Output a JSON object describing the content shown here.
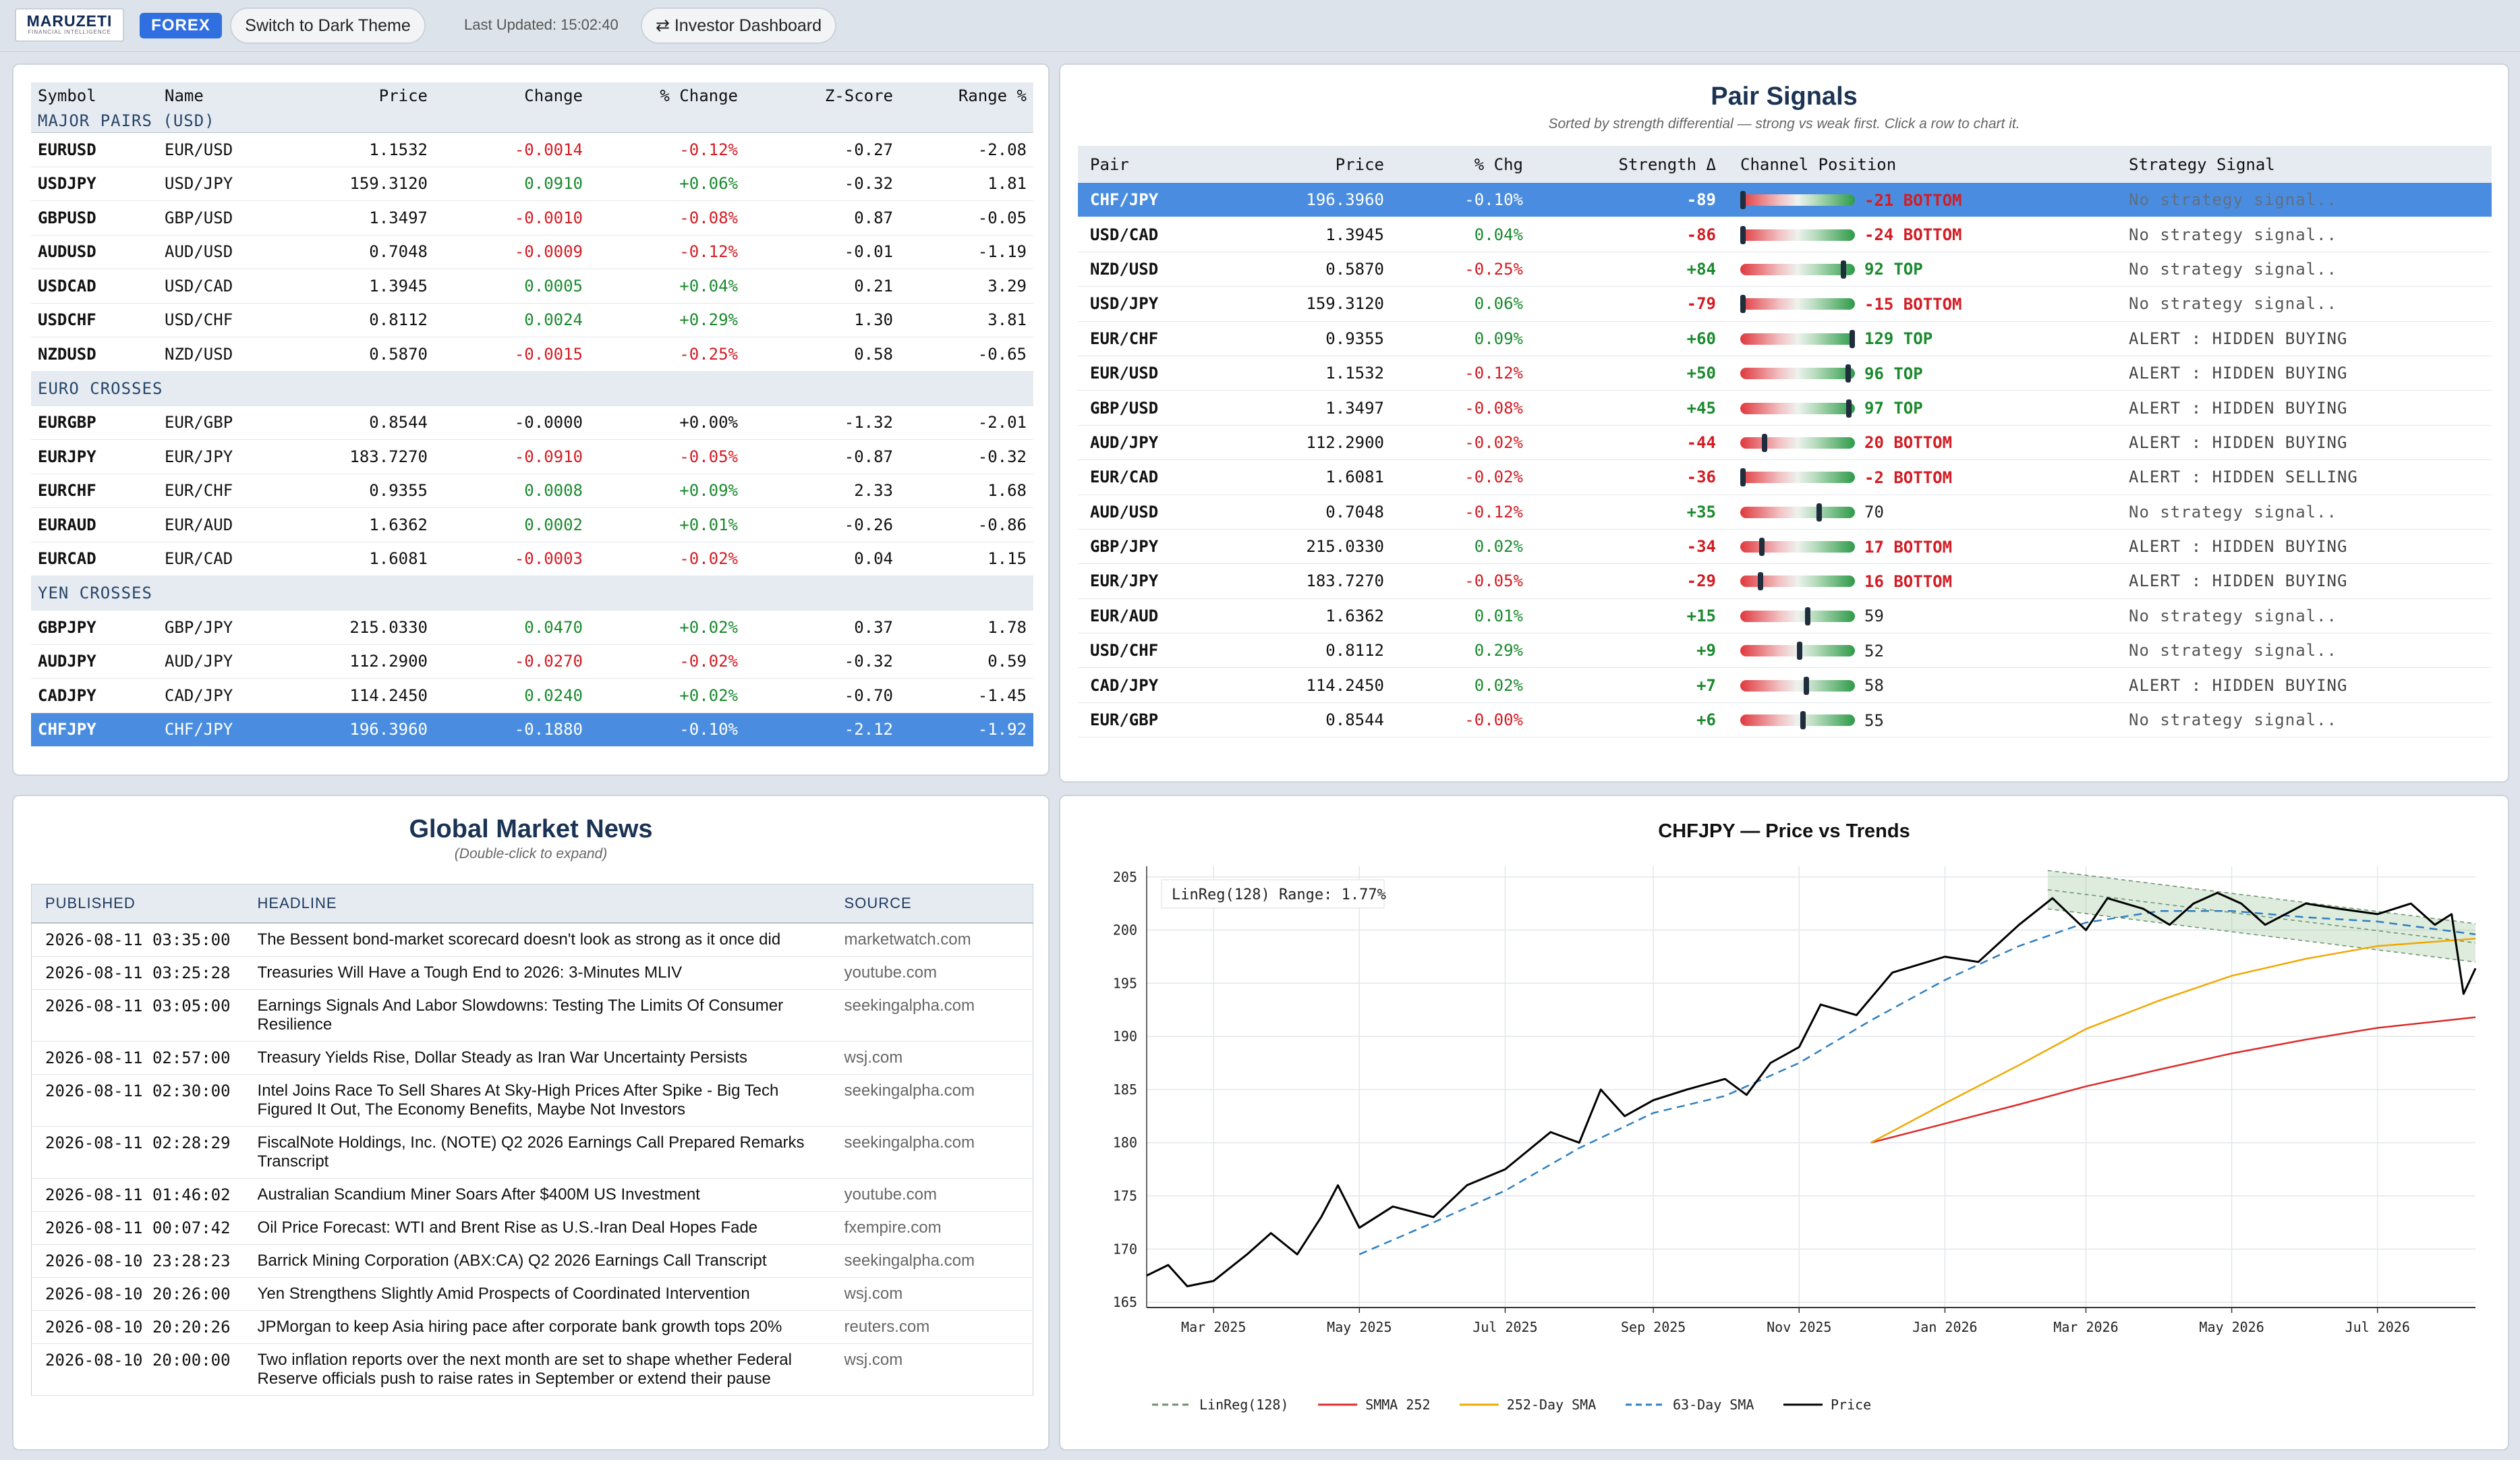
{
  "topbar": {
    "logo_text": "MARUZETI",
    "logo_sub": "FINANCIAL INTELLIGENCE",
    "badge": "FOREX",
    "theme_button": "Switch to Dark Theme",
    "last_updated": "Last Updated: 15:02:40",
    "investor_button": "Investor Dashboard",
    "investor_icon": "⇄"
  },
  "quotes": {
    "headers": [
      "Symbol",
      "Name",
      "Price",
      "Change",
      "% Change",
      "Z-Score",
      "Range %"
    ],
    "groups": [
      {
        "label": "MAJOR PAIRS (USD)",
        "rows": [
          [
            "EURUSD",
            "EUR/USD",
            "1.1532",
            "-0.0014",
            "-0.12%",
            "-0.27",
            "-2.08"
          ],
          [
            "USDJPY",
            "USD/JPY",
            "159.3120",
            "0.0910",
            "+0.06%",
            "-0.32",
            "1.81"
          ],
          [
            "GBPUSD",
            "GBP/USD",
            "1.3497",
            "-0.0010",
            "-0.08%",
            "0.87",
            "-0.05"
          ],
          [
            "AUDUSD",
            "AUD/USD",
            "0.7048",
            "-0.0009",
            "-0.12%",
            "-0.01",
            "-1.19"
          ],
          [
            "USDCAD",
            "USD/CAD",
            "1.3945",
            "0.0005",
            "+0.04%",
            "0.21",
            "3.29"
          ],
          [
            "USDCHF",
            "USD/CHF",
            "0.8112",
            "0.0024",
            "+0.29%",
            "1.30",
            "3.81"
          ],
          [
            "NZDUSD",
            "NZD/USD",
            "0.5870",
            "-0.0015",
            "-0.25%",
            "0.58",
            "-0.65"
          ]
        ]
      },
      {
        "label": "EURO CROSSES",
        "rows": [
          [
            "EURGBP",
            "EUR/GBP",
            "0.8544",
            "-0.0000",
            "+0.00%",
            "-1.32",
            "-2.01"
          ],
          [
            "EURJPY",
            "EUR/JPY",
            "183.7270",
            "-0.0910",
            "-0.05%",
            "-0.87",
            "-0.32"
          ],
          [
            "EURCHF",
            "EUR/CHF",
            "0.9355",
            "0.0008",
            "+0.09%",
            "2.33",
            "1.68"
          ],
          [
            "EURAUD",
            "EUR/AUD",
            "1.6362",
            "0.0002",
            "+0.01%",
            "-0.26",
            "-0.86"
          ],
          [
            "EURCAD",
            "EUR/CAD",
            "1.6081",
            "-0.0003",
            "-0.02%",
            "0.04",
            "1.15"
          ]
        ]
      },
      {
        "label": "YEN CROSSES",
        "rows": [
          [
            "GBPJPY",
            "GBP/JPY",
            "215.0330",
            "0.0470",
            "+0.02%",
            "0.37",
            "1.78"
          ],
          [
            "AUDJPY",
            "AUD/JPY",
            "112.2900",
            "-0.0270",
            "-0.02%",
            "-0.32",
            "0.59"
          ],
          [
            "CADJPY",
            "CAD/JPY",
            "114.2450",
            "0.0240",
            "+0.02%",
            "-0.70",
            "-1.45"
          ],
          [
            "CHFJPY",
            "CHF/JPY",
            "196.3960",
            "-0.1880",
            "-0.10%",
            "-2.12",
            "-1.92"
          ]
        ]
      }
    ],
    "selected": "CHFJPY"
  },
  "signals": {
    "title": "Pair Signals",
    "subtitle": "Sorted by strength differential — strong vs weak first. Click a row to chart it.",
    "headers": [
      "Pair",
      "Price",
      "% Chg",
      "Strength Δ",
      "Channel Position",
      "Strategy Signal"
    ],
    "rows": [
      {
        "pair": "CHF/JPY",
        "price": "196.3960",
        "chg": "-0.10%",
        "strength": "-89",
        "pos": 0.0,
        "label": "-21 BOTTOM",
        "zone": "bottom",
        "signal": "No strategy signal..",
        "sel": true
      },
      {
        "pair": "USD/CAD",
        "price": "1.3945",
        "chg": "0.04%",
        "strength": "-86",
        "pos": 0.0,
        "label": "-24 BOTTOM",
        "zone": "bottom",
        "signal": "No strategy signal.."
      },
      {
        "pair": "NZD/USD",
        "price": "0.5870",
        "chg": "-0.25%",
        "strength": "+84",
        "pos": 0.92,
        "label": "92 TOP",
        "zone": "top",
        "signal": "No strategy signal.."
      },
      {
        "pair": "USD/JPY",
        "price": "159.3120",
        "chg": "0.06%",
        "strength": "-79",
        "pos": 0.0,
        "label": "-15 BOTTOM",
        "zone": "bottom",
        "signal": "No strategy signal.."
      },
      {
        "pair": "EUR/CHF",
        "price": "0.9355",
        "chg": "0.09%",
        "strength": "+60",
        "pos": 1.0,
        "label": "129 TOP",
        "zone": "top",
        "signal": "ALERT : HIDDEN BUYING"
      },
      {
        "pair": "EUR/USD",
        "price": "1.1532",
        "chg": "-0.12%",
        "strength": "+50",
        "pos": 0.96,
        "label": "96 TOP",
        "zone": "top",
        "signal": "ALERT : HIDDEN BUYING"
      },
      {
        "pair": "GBP/USD",
        "price": "1.3497",
        "chg": "-0.08%",
        "strength": "+45",
        "pos": 0.97,
        "label": "97 TOP",
        "zone": "top",
        "signal": "ALERT : HIDDEN BUYING"
      },
      {
        "pair": "AUD/JPY",
        "price": "112.2900",
        "chg": "-0.02%",
        "strength": "-44",
        "pos": 0.2,
        "label": "20 BOTTOM",
        "zone": "bottom",
        "signal": "ALERT : HIDDEN BUYING"
      },
      {
        "pair": "EUR/CAD",
        "price": "1.6081",
        "chg": "-0.02%",
        "strength": "-36",
        "pos": 0.0,
        "label": "-2 BOTTOM",
        "zone": "bottom",
        "signal": "ALERT : HIDDEN SELLING"
      },
      {
        "pair": "AUD/USD",
        "price": "0.7048",
        "chg": "-0.12%",
        "strength": "+35",
        "pos": 0.7,
        "label": "70",
        "zone": "mid",
        "signal": "No strategy signal.."
      },
      {
        "pair": "GBP/JPY",
        "price": "215.0330",
        "chg": "0.02%",
        "strength": "-34",
        "pos": 0.17,
        "label": "17 BOTTOM",
        "zone": "bottom",
        "signal": "ALERT : HIDDEN BUYING"
      },
      {
        "pair": "EUR/JPY",
        "price": "183.7270",
        "chg": "-0.05%",
        "strength": "-29",
        "pos": 0.16,
        "label": "16 BOTTOM",
        "zone": "bottom",
        "signal": "ALERT : HIDDEN BUYING"
      },
      {
        "pair": "EUR/AUD",
        "price": "1.6362",
        "chg": "0.01%",
        "strength": "+15",
        "pos": 0.59,
        "label": "59",
        "zone": "mid",
        "signal": "No strategy signal.."
      },
      {
        "pair": "USD/CHF",
        "price": "0.8112",
        "chg": "0.29%",
        "strength": "+9",
        "pos": 0.52,
        "label": "52",
        "zone": "mid",
        "signal": "No strategy signal.."
      },
      {
        "pair": "CAD/JPY",
        "price": "114.2450",
        "chg": "0.02%",
        "strength": "+7",
        "pos": 0.58,
        "label": "58",
        "zone": "mid",
        "signal": "ALERT : HIDDEN BUYING"
      },
      {
        "pair": "EUR/GBP",
        "price": "0.8544",
        "chg": "-0.00%",
        "strength": "+6",
        "pos": 0.55,
        "label": "55",
        "zone": "mid",
        "signal": "No strategy signal.."
      }
    ]
  },
  "news": {
    "title": "Global Market News",
    "subtitle": "(Double-click to expand)",
    "headers": [
      "PUBLISHED",
      "HEADLINE",
      "SOURCE"
    ],
    "rows": [
      [
        "2026-08-11 03:35:00",
        "The Bessent bond-market scorecard doesn't look as strong as it once did",
        "marketwatch.com"
      ],
      [
        "2026-08-11 03:25:28",
        "Treasuries Will Have a Tough End to 2026: 3-Minutes MLIV",
        "youtube.com"
      ],
      [
        "2026-08-11 03:05:00",
        "Earnings Signals And Labor Slowdowns: Testing The Limits Of Consumer Resilience",
        "seekingalpha.com"
      ],
      [
        "2026-08-11 02:57:00",
        "Treasury Yields Rise, Dollar Steady as Iran War Uncertainty Persists",
        "wsj.com"
      ],
      [
        "2026-08-11 02:30:00",
        "Intel Joins Race To Sell Shares At Sky-High Prices After Spike - Big Tech Figured It Out, The Economy Benefits, Maybe Not Investors",
        "seekingalpha.com"
      ],
      [
        "2026-08-11 02:28:29",
        "FiscalNote Holdings, Inc. (NOTE) Q2 2026 Earnings Call Prepared Remarks Transcript",
        "seekingalpha.com"
      ],
      [
        "2026-08-11 01:46:02",
        "Australian Scandium Miner Soars After $400M US Investment",
        "youtube.com"
      ],
      [
        "2026-08-11 00:07:42",
        "Oil Price Forecast: WTI and Brent Rise as U.S.-Iran Deal Hopes Fade",
        "fxempire.com"
      ],
      [
        "2026-08-10 23:28:23",
        "Barrick Mining Corporation (ABX:CA) Q2 2026 Earnings Call Transcript",
        "seekingalpha.com"
      ],
      [
        "2026-08-10 20:26:00",
        "Yen Strengthens Slightly Amid Prospects of Coordinated Intervention",
        "wsj.com"
      ],
      [
        "2026-08-10 20:20:26",
        "JPMorgan to keep Asia hiring pace after corporate bank growth tops 20%",
        "reuters.com"
      ],
      [
        "2026-08-10 20:00:00",
        "Two inflation reports over the next month are set to shape whether Federal Reserve officials push to raise rates in September or extend their pause",
        "wsj.com"
      ]
    ]
  },
  "chart_data": {
    "type": "line",
    "title": "CHFJPY — Price vs Trends",
    "annotation": "LinReg(128) Range: 1.77%",
    "xlabel": "",
    "ylabel": "",
    "ylim": [
      164.5,
      206
    ],
    "xlim": [
      "2025-02-01",
      "2026-08-11"
    ],
    "x_ticks": [
      "Mar 2025",
      "May 2025",
      "Jul 2025",
      "Sep 2025",
      "Nov 2025",
      "Jan 2026",
      "Mar 2026",
      "May 2026",
      "Jul 2026"
    ],
    "x_tick_dates": [
      "2025-03-01",
      "2025-05-01",
      "2025-07-01",
      "2025-09-01",
      "2025-11-01",
      "2026-01-01",
      "2026-03-01",
      "2026-05-01",
      "2026-07-01"
    ],
    "y_ticks": [
      165,
      170,
      175,
      180,
      185,
      190,
      195,
      200,
      205
    ],
    "grid": true,
    "legend_position": "bottom",
    "series": [
      {
        "name": "LinReg(128)",
        "color": "#6b8f6b",
        "style": "dashed",
        "points": [
          [
            "2026-02-13",
            203.8
          ],
          [
            "2026-08-11",
            198.8
          ]
        ],
        "band": 1.77
      },
      {
        "name": "SMMA 252",
        "color": "#dd2b2b",
        "style": "solid",
        "points": [
          [
            "2025-12-01",
            180.0
          ],
          [
            "2026-01-01",
            181.8
          ],
          [
            "2026-02-01",
            183.6
          ],
          [
            "2026-03-01",
            185.3
          ],
          [
            "2026-04-01",
            186.9
          ],
          [
            "2026-05-01",
            188.4
          ],
          [
            "2026-06-01",
            189.7
          ],
          [
            "2026-07-01",
            190.8
          ],
          [
            "2026-08-11",
            191.8
          ]
        ]
      },
      {
        "name": "252-Day SMA",
        "color": "#f0a800",
        "style": "solid",
        "points": [
          [
            "2025-12-01",
            180.0
          ],
          [
            "2026-01-01",
            183.7
          ],
          [
            "2026-02-01",
            187.3
          ],
          [
            "2026-03-01",
            190.7
          ],
          [
            "2026-04-01",
            193.4
          ],
          [
            "2026-05-01",
            195.7
          ],
          [
            "2026-06-01",
            197.3
          ],
          [
            "2026-07-01",
            198.5
          ],
          [
            "2026-08-11",
            199.2
          ]
        ]
      },
      {
        "name": "63-Day SMA",
        "color": "#2f7fc0",
        "style": "dashed",
        "points": [
          [
            "2025-05-01",
            169.5
          ],
          [
            "2025-06-01",
            172.5
          ],
          [
            "2025-07-01",
            175.5
          ],
          [
            "2025-08-01",
            179.5
          ],
          [
            "2025-09-01",
            182.8
          ],
          [
            "2025-10-01",
            184.4
          ],
          [
            "2025-11-01",
            187.5
          ],
          [
            "2025-12-01",
            191.5
          ],
          [
            "2026-01-01",
            195.3
          ],
          [
            "2026-02-01",
            198.5
          ],
          [
            "2026-03-01",
            200.7
          ],
          [
            "2026-04-01",
            201.8
          ],
          [
            "2026-05-01",
            201.8
          ],
          [
            "2026-06-01",
            201.2
          ],
          [
            "2026-07-01",
            200.8
          ],
          [
            "2026-08-11",
            199.6
          ]
        ]
      },
      {
        "name": "Price",
        "color": "#000000",
        "style": "solid",
        "points": [
          [
            "2025-02-01",
            167.5
          ],
          [
            "2025-02-10",
            168.5
          ],
          [
            "2025-02-18",
            166.5
          ],
          [
            "2025-03-01",
            167.0
          ],
          [
            "2025-03-15",
            169.5
          ],
          [
            "2025-03-25",
            171.5
          ],
          [
            "2025-04-05",
            169.5
          ],
          [
            "2025-04-15",
            173.0
          ],
          [
            "2025-04-22",
            176.0
          ],
          [
            "2025-05-01",
            172.0
          ],
          [
            "2025-05-15",
            174.0
          ],
          [
            "2025-06-01",
            173.0
          ],
          [
            "2025-06-15",
            176.0
          ],
          [
            "2025-07-01",
            177.5
          ],
          [
            "2025-07-20",
            181.0
          ],
          [
            "2025-08-01",
            180.0
          ],
          [
            "2025-08-10",
            185.0
          ],
          [
            "2025-08-20",
            182.5
          ],
          [
            "2025-09-01",
            184.0
          ],
          [
            "2025-09-15",
            185.0
          ],
          [
            "2025-10-01",
            186.0
          ],
          [
            "2025-10-10",
            184.5
          ],
          [
            "2025-10-20",
            187.5
          ],
          [
            "2025-11-01",
            189.0
          ],
          [
            "2025-11-10",
            193.0
          ],
          [
            "2025-11-25",
            192.0
          ],
          [
            "2025-12-10",
            196.0
          ],
          [
            "2026-01-01",
            197.5
          ],
          [
            "2026-01-15",
            197.0
          ],
          [
            "2026-02-01",
            200.5
          ],
          [
            "2026-02-15",
            203.0
          ],
          [
            "2026-03-01",
            200.0
          ],
          [
            "2026-03-10",
            203.0
          ],
          [
            "2026-03-25",
            202.0
          ],
          [
            "2026-04-05",
            200.5
          ],
          [
            "2026-04-15",
            202.5
          ],
          [
            "2026-04-25",
            203.5
          ],
          [
            "2026-05-05",
            202.5
          ],
          [
            "2026-05-15",
            200.5
          ],
          [
            "2026-06-01",
            202.5
          ],
          [
            "2026-06-15",
            202.0
          ],
          [
            "2026-07-01",
            201.5
          ],
          [
            "2026-07-15",
            202.5
          ],
          [
            "2026-07-25",
            200.5
          ],
          [
            "2026-08-01",
            201.5
          ],
          [
            "2026-08-06",
            194.0
          ],
          [
            "2026-08-11",
            196.4
          ]
        ]
      }
    ]
  }
}
